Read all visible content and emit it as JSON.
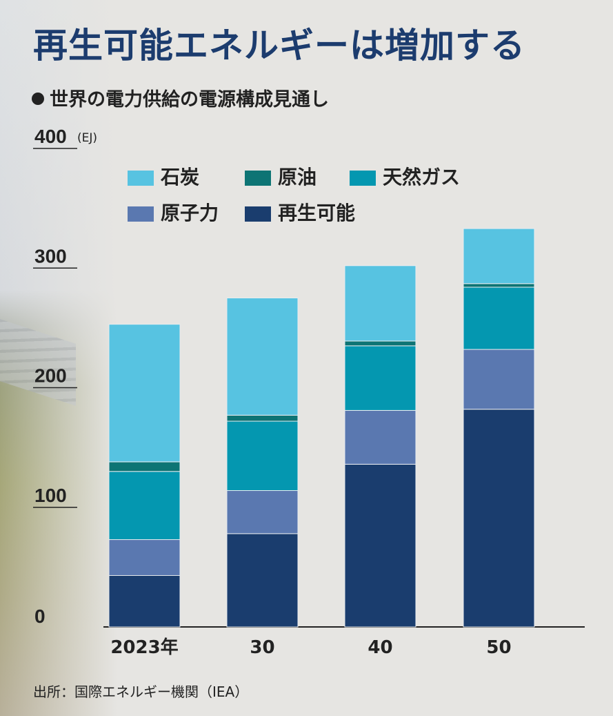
{
  "title": "再生可能エネルギーは増加する",
  "subtitle": "世界の電力供給の電源構成見通し",
  "source": "出所：国際エネルギー機関（IEA）",
  "chart_data": {
    "type": "bar",
    "stacked": true,
    "categories": [
      "2023年",
      "30",
      "40",
      "50"
    ],
    "ylabel": "",
    "unit": "(EJ)",
    "ylim": [
      0,
      400
    ],
    "yticks": [
      "0",
      "100",
      "200",
      "300",
      "400"
    ],
    "grid": false,
    "legend": "top-left",
    "series": [
      {
        "name": "再生可能",
        "color": "#1a3d6e",
        "values": [
          43,
          78,
          136,
          182
        ]
      },
      {
        "name": "原子力",
        "color": "#5a78b0",
        "values": [
          30,
          36,
          45,
          50
        ]
      },
      {
        "name": "天然ガス",
        "color": "#0497b0",
        "values": [
          57,
          58,
          54,
          52
        ]
      },
      {
        "name": "原油",
        "color": "#0d7474",
        "values": [
          8,
          5,
          4,
          3
        ]
      },
      {
        "name": "石炭",
        "color": "#57c3e1",
        "values": [
          115,
          98,
          63,
          46
        ]
      }
    ],
    "legend_order": [
      "石炭",
      "原油",
      "天然ガス",
      "原子力",
      "再生可能"
    ]
  }
}
